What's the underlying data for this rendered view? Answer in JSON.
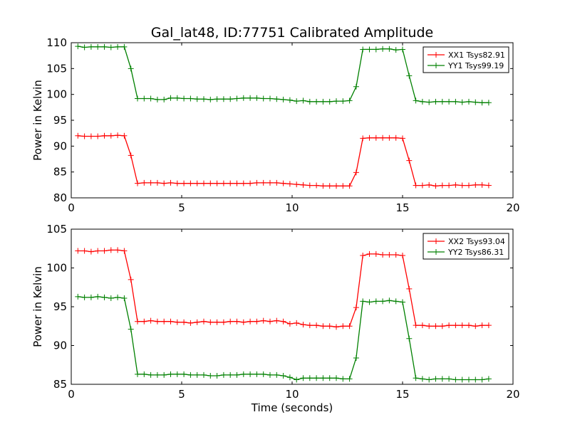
{
  "title": "Gal_lat48, ID:77751 Calibrated Amplitude",
  "chart_data": [
    {
      "type": "line",
      "title": "Gal_lat48, ID:77751 Calibrated Amplitude",
      "xlabel": "",
      "ylabel": "Power in Kelvin",
      "xlim": [
        0,
        20
      ],
      "ylim": [
        80,
        110
      ],
      "xticks": [
        "0",
        "5",
        "10",
        "15",
        "20"
      ],
      "yticks": [
        "80",
        "85",
        "90",
        "95",
        "100",
        "105",
        "110"
      ],
      "xtick_values": [
        0,
        5,
        10,
        15,
        20
      ],
      "ytick_values": [
        80,
        85,
        90,
        95,
        100,
        105,
        110
      ],
      "grid": false,
      "legend_position": "top-right",
      "x": [
        0.3,
        0.6,
        0.9,
        1.2,
        1.5,
        1.8,
        2.1,
        2.4,
        2.7,
        3.0,
        3.3,
        3.6,
        3.9,
        4.2,
        4.5,
        4.8,
        5.1,
        5.4,
        5.7,
        6.0,
        6.3,
        6.6,
        6.9,
        7.2,
        7.5,
        7.8,
        8.1,
        8.4,
        8.7,
        9.0,
        9.3,
        9.6,
        9.9,
        10.2,
        10.5,
        10.8,
        11.1,
        11.4,
        11.7,
        12.0,
        12.3,
        12.6,
        12.9,
        13.2,
        13.5,
        13.8,
        14.1,
        14.4,
        14.7,
        15.0,
        15.3,
        15.6,
        15.9,
        16.2,
        16.5,
        16.8,
        17.1,
        17.4,
        17.7,
        18.0,
        18.3,
        18.6,
        18.9
      ],
      "series": [
        {
          "name": "XX1 Tsys82.91",
          "color": "#ff0000",
          "values": [
            92.0,
            91.9,
            91.9,
            91.9,
            92.0,
            92.0,
            92.1,
            92.0,
            88.2,
            82.8,
            82.9,
            82.9,
            82.9,
            82.8,
            82.9,
            82.8,
            82.8,
            82.8,
            82.8,
            82.8,
            82.8,
            82.8,
            82.8,
            82.8,
            82.8,
            82.8,
            82.8,
            82.9,
            82.9,
            82.9,
            82.9,
            82.8,
            82.7,
            82.6,
            82.5,
            82.4,
            82.4,
            82.3,
            82.3,
            82.3,
            82.3,
            82.3,
            84.9,
            91.5,
            91.6,
            91.6,
            91.6,
            91.6,
            91.6,
            91.5,
            87.2,
            82.4,
            82.4,
            82.5,
            82.3,
            82.4,
            82.4,
            82.5,
            82.4,
            82.4,
            82.5,
            82.5,
            82.4
          ]
        },
        {
          "name": "YY1 Tsys99.19",
          "color": "#008000",
          "values": [
            109.3,
            109.1,
            109.2,
            109.2,
            109.2,
            109.1,
            109.2,
            109.2,
            105.0,
            99.2,
            99.2,
            99.2,
            99.0,
            99.0,
            99.3,
            99.3,
            99.2,
            99.2,
            99.1,
            99.1,
            99.0,
            99.1,
            99.1,
            99.1,
            99.2,
            99.3,
            99.3,
            99.3,
            99.2,
            99.2,
            99.1,
            99.0,
            98.9,
            98.7,
            98.8,
            98.6,
            98.6,
            98.6,
            98.6,
            98.7,
            98.7,
            98.8,
            101.5,
            108.7,
            108.7,
            108.7,
            108.8,
            108.8,
            108.6,
            108.7,
            103.6,
            98.8,
            98.6,
            98.5,
            98.6,
            98.6,
            98.6,
            98.6,
            98.5,
            98.6,
            98.5,
            98.4,
            98.4
          ]
        }
      ]
    },
    {
      "type": "line",
      "title": "",
      "xlabel": "Time (seconds)",
      "ylabel": "Power in Kelvin",
      "xlim": [
        0,
        20
      ],
      "ylim": [
        85,
        105
      ],
      "xticks": [
        "0",
        "5",
        "10",
        "15",
        "20"
      ],
      "yticks": [
        "85",
        "90",
        "95",
        "100",
        "105"
      ],
      "xtick_values": [
        0,
        5,
        10,
        15,
        20
      ],
      "ytick_values": [
        85,
        90,
        95,
        100,
        105
      ],
      "grid": false,
      "legend_position": "top-right",
      "x": [
        0.3,
        0.6,
        0.9,
        1.2,
        1.5,
        1.8,
        2.1,
        2.4,
        2.7,
        3.0,
        3.3,
        3.6,
        3.9,
        4.2,
        4.5,
        4.8,
        5.1,
        5.4,
        5.7,
        6.0,
        6.3,
        6.6,
        6.9,
        7.2,
        7.5,
        7.8,
        8.1,
        8.4,
        8.7,
        9.0,
        9.3,
        9.6,
        9.9,
        10.2,
        10.5,
        10.8,
        11.1,
        11.4,
        11.7,
        12.0,
        12.3,
        12.6,
        12.9,
        13.2,
        13.5,
        13.8,
        14.1,
        14.4,
        14.7,
        15.0,
        15.3,
        15.6,
        15.9,
        16.2,
        16.5,
        16.8,
        17.1,
        17.4,
        17.7,
        18.0,
        18.3,
        18.6,
        18.9
      ],
      "series": [
        {
          "name": "XX2 Tsys93.04",
          "color": "#ff0000",
          "values": [
            102.2,
            102.2,
            102.1,
            102.2,
            102.2,
            102.3,
            102.3,
            102.2,
            98.5,
            93.1,
            93.1,
            93.2,
            93.1,
            93.1,
            93.1,
            93.0,
            93.0,
            92.9,
            93.0,
            93.1,
            93.0,
            93.0,
            93.0,
            93.1,
            93.1,
            93.0,
            93.1,
            93.1,
            93.2,
            93.1,
            93.2,
            93.1,
            92.8,
            92.9,
            92.7,
            92.6,
            92.6,
            92.5,
            92.5,
            92.4,
            92.5,
            92.5,
            94.9,
            101.6,
            101.8,
            101.8,
            101.7,
            101.7,
            101.7,
            101.6,
            97.3,
            92.6,
            92.6,
            92.5,
            92.5,
            92.5,
            92.6,
            92.6,
            92.6,
            92.6,
            92.5,
            92.6,
            92.6
          ]
        },
        {
          "name": "YY2 Tsys86.31",
          "color": "#008000",
          "values": [
            96.3,
            96.2,
            96.2,
            96.3,
            96.2,
            96.1,
            96.2,
            96.1,
            92.1,
            86.3,
            86.3,
            86.2,
            86.2,
            86.2,
            86.3,
            86.3,
            86.3,
            86.2,
            86.2,
            86.2,
            86.1,
            86.1,
            86.2,
            86.2,
            86.2,
            86.3,
            86.3,
            86.3,
            86.3,
            86.2,
            86.2,
            86.1,
            85.9,
            85.6,
            85.8,
            85.8,
            85.8,
            85.8,
            85.8,
            85.8,
            85.7,
            85.7,
            88.4,
            95.7,
            95.6,
            95.7,
            95.7,
            95.8,
            95.7,
            95.6,
            90.9,
            85.8,
            85.7,
            85.6,
            85.7,
            85.7,
            85.7,
            85.6,
            85.6,
            85.6,
            85.6,
            85.6,
            85.7
          ]
        }
      ]
    }
  ]
}
